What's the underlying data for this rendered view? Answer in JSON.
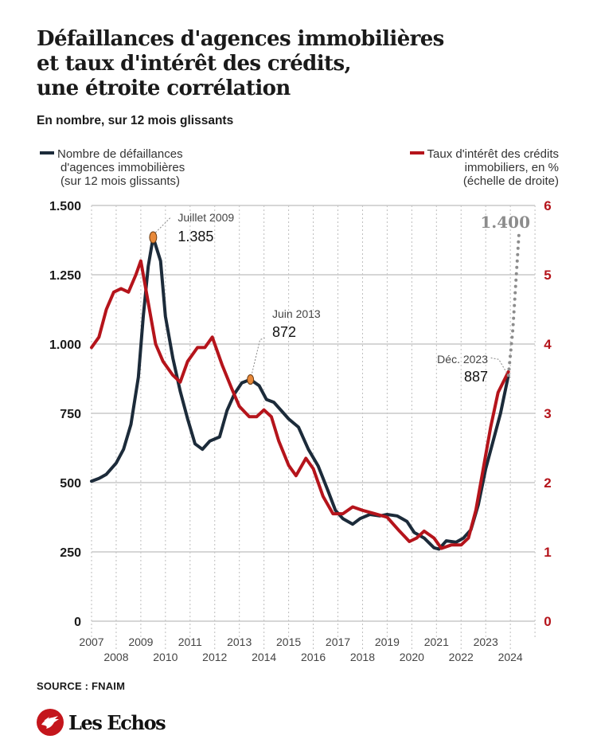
{
  "header": {
    "title_lines": [
      "Défaillances d'agences immobilières",
      "et taux d'intérêt des crédits,",
      "une étroite corrélation"
    ],
    "subtitle": "En nombre, sur 12 mois glissants"
  },
  "legend": {
    "left": {
      "lines": [
        "Nombre de défaillances",
        "d'agences immobilières",
        "(sur 12 mois glissants)"
      ],
      "color": "#1c2b3a"
    },
    "right": {
      "lines": [
        "Taux d'intérêt des crédits",
        "immobiliers, en %",
        "(échelle de droite)"
      ],
      "color": "#b5141b"
    }
  },
  "footer": {
    "source": "SOURCE :  FNAIM",
    "brand": "Les Echos",
    "brand_color": "#c4161c"
  },
  "chart_data": {
    "type": "line",
    "title": "Défaillances d'agences immobilières et taux d'intérêt des crédits, une étroite corrélation",
    "subtitle": "En nombre, sur 12 mois glissants",
    "xlabel": "",
    "ylabel": "",
    "x_range": [
      2007,
      2025
    ],
    "x_ticks_top_row": [
      "2007",
      "2009",
      "2011",
      "2013",
      "2015",
      "2017",
      "2019",
      "2021",
      "2023"
    ],
    "x_ticks_bottom_row": [
      "2008",
      "2010",
      "2012",
      "2014",
      "2016",
      "2018",
      "2020",
      "2022",
      "2024"
    ],
    "y_left": {
      "range": [
        0,
        1500
      ],
      "ticks": [
        0,
        250,
        500,
        750,
        1000,
        1250,
        1500
      ],
      "tick_labels": [
        "0",
        "250",
        "500",
        "750",
        "1.000",
        "1.250",
        "1.500"
      ]
    },
    "y_right": {
      "range": [
        0,
        6
      ],
      "ticks": [
        0,
        1,
        2,
        3,
        4,
        5,
        6
      ],
      "tick_labels": [
        "0",
        "1",
        "2",
        "3",
        "4",
        "5",
        "6"
      ],
      "color": "#b5141b"
    },
    "grid": "horizontal solid, vertical dotted per year",
    "legend_position": "top",
    "series": [
      {
        "name": "Nombre de défaillances d'agences immobilières (sur 12 mois glissants)",
        "axis": "left",
        "color": "#1c2b3a",
        "x": [
          2007.0,
          2007.3,
          2007.6,
          2008.0,
          2008.3,
          2008.6,
          2008.9,
          2009.1,
          2009.3,
          2009.5,
          2009.8,
          2010.0,
          2010.3,
          2010.6,
          2010.9,
          2011.2,
          2011.5,
          2011.8,
          2012.2,
          2012.5,
          2012.8,
          2013.1,
          2013.45,
          2013.8,
          2014.1,
          2014.4,
          2014.7,
          2015.0,
          2015.4,
          2015.8,
          2016.2,
          2016.6,
          2016.9,
          2017.2,
          2017.6,
          2017.9,
          2018.3,
          2018.7,
          2019.0,
          2019.4,
          2019.8,
          2020.1,
          2020.5,
          2020.9,
          2021.1,
          2021.4,
          2021.8,
          2022.1,
          2022.4,
          2022.7,
          2023.0,
          2023.3,
          2023.6,
          2023.92
        ],
        "values": [
          505,
          515,
          530,
          570,
          620,
          710,
          880,
          1100,
          1280,
          1385,
          1300,
          1100,
          950,
          830,
          730,
          640,
          620,
          650,
          665,
          760,
          820,
          860,
          872,
          850,
          800,
          790,
          760,
          730,
          700,
          620,
          560,
          470,
          400,
          370,
          350,
          370,
          385,
          380,
          385,
          380,
          360,
          320,
          300,
          265,
          260,
          290,
          285,
          300,
          330,
          420,
          550,
          650,
          750,
          887
        ]
      },
      {
        "name": "Taux d'intérêt des crédits immobiliers, en % (échelle de droite)",
        "axis": "right",
        "color": "#b5141b",
        "x": [
          2007.0,
          2007.3,
          2007.6,
          2007.9,
          2008.2,
          2008.5,
          2008.8,
          2009.0,
          2009.3,
          2009.6,
          2009.9,
          2010.3,
          2010.6,
          2010.9,
          2011.3,
          2011.6,
          2011.9,
          2012.3,
          2012.7,
          2013.0,
          2013.4,
          2013.7,
          2014.0,
          2014.3,
          2014.6,
          2015.0,
          2015.3,
          2015.7,
          2016.0,
          2016.4,
          2016.8,
          2017.2,
          2017.6,
          2018.0,
          2018.5,
          2019.0,
          2019.5,
          2019.9,
          2020.2,
          2020.5,
          2020.9,
          2021.2,
          2021.6,
          2022.0,
          2022.3,
          2022.6,
          2022.9,
          2023.2,
          2023.5,
          2023.92
        ],
        "values": [
          3.95,
          4.1,
          4.5,
          4.75,
          4.8,
          4.75,
          5.0,
          5.2,
          4.6,
          4.0,
          3.75,
          3.55,
          3.45,
          3.75,
          3.95,
          3.95,
          4.1,
          3.7,
          3.35,
          3.1,
          2.95,
          2.95,
          3.05,
          2.95,
          2.6,
          2.25,
          2.1,
          2.35,
          2.2,
          1.8,
          1.55,
          1.55,
          1.65,
          1.6,
          1.55,
          1.5,
          1.3,
          1.15,
          1.2,
          1.3,
          1.2,
          1.05,
          1.1,
          1.1,
          1.2,
          1.6,
          2.2,
          2.8,
          3.3,
          3.6
        ]
      },
      {
        "name": "Projection",
        "axis": "left",
        "color": "#8c8c8c",
        "style": "dotted",
        "x": [
          2023.92,
          2024.1,
          2024.35
        ],
        "values": [
          887,
          1050,
          1400
        ]
      }
    ],
    "annotations": [
      {
        "label": "Juillet 2009",
        "value_label": "1.385",
        "x": 2009.5,
        "y": 1385,
        "axis": "left",
        "marker_color": "#e8893a"
      },
      {
        "label": "Juin 2013",
        "value_label": "872",
        "x": 2013.45,
        "y": 872,
        "axis": "left",
        "marker_color": "#e8893a"
      },
      {
        "label": "Déc. 2023",
        "value_label": "887",
        "x": 2023.92,
        "y": 887,
        "axis": "left"
      },
      {
        "label": "",
        "value_label": "1.400",
        "x": 2024.35,
        "y": 1400,
        "axis": "left",
        "color": "#8c8c8c"
      }
    ]
  }
}
